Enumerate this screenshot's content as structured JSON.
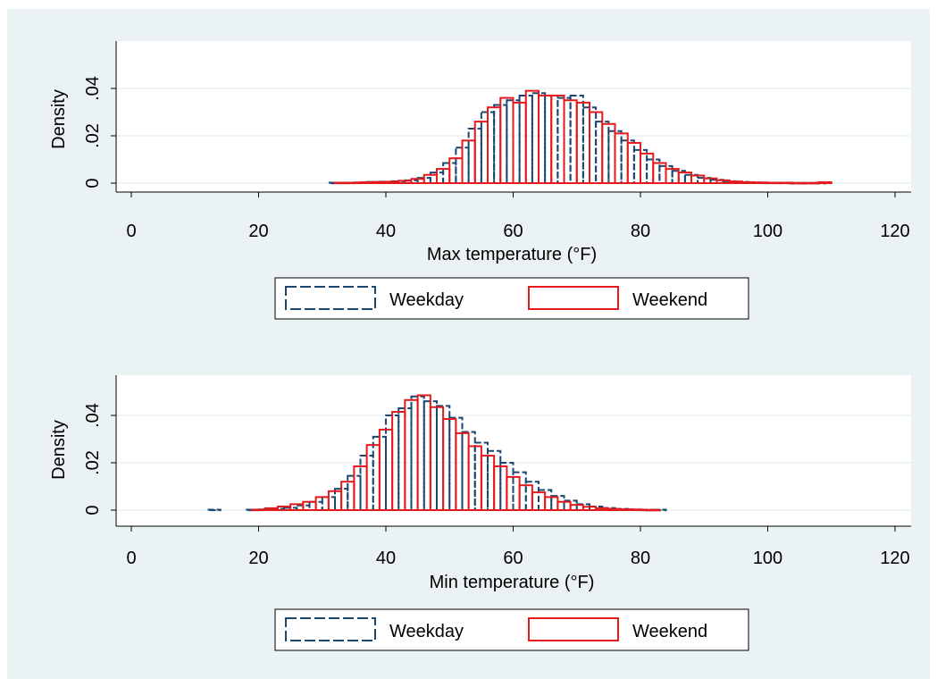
{
  "colors": {
    "outer_background": "#ffffff",
    "graph_region": "#eaf2f3",
    "plot_region": "#ffffff",
    "grid": "#eaf2f3",
    "weekday": "#1a476f",
    "weekend": "#e41a1c",
    "axis": "#000000"
  },
  "chart_data": [
    {
      "type": "bar",
      "subtype": "overlaid-histogram",
      "xlabel": "Max temperature (°F)",
      "ylabel": "Density",
      "xlim": [
        0,
        120
      ],
      "ylim": [
        0,
        0.05
      ],
      "xticks": [
        0,
        20,
        40,
        60,
        80,
        100,
        120
      ],
      "yticks": [
        0,
        0.02,
        0.04
      ],
      "ytick_labels": [
        "0",
        ".02",
        ".04"
      ],
      "grid": true,
      "legend_position": "bottom",
      "bin_width": 2,
      "series": [
        {
          "name": "Weekday",
          "style": "dashed",
          "bins": [
            32,
            34,
            36,
            38,
            40,
            42,
            44,
            46,
            48,
            50,
            52,
            54,
            56,
            58,
            60,
            62,
            64,
            66,
            68,
            70,
            72,
            74,
            76,
            78,
            80,
            82,
            84,
            86,
            88,
            90,
            92,
            94,
            96,
            98,
            100,
            102,
            104,
            106,
            108
          ],
          "values": [
            0.0002,
            0.0002,
            0.0003,
            0.0005,
            0.0006,
            0.0008,
            0.0012,
            0.0022,
            0.0045,
            0.0085,
            0.015,
            0.023,
            0.03,
            0.033,
            0.035,
            0.037,
            0.038,
            0.037,
            0.036,
            0.037,
            0.032,
            0.026,
            0.022,
            0.018,
            0.014,
            0.01,
            0.0072,
            0.0052,
            0.0035,
            0.0022,
            0.0014,
            0.0008,
            0.0005,
            0.0003,
            0.0002,
            0.0002,
            0.0001,
            0.0001,
            0.0001
          ]
        },
        {
          "name": "Weekend",
          "style": "solid",
          "bins": [
            33,
            35,
            37,
            39,
            41,
            43,
            45,
            47,
            49,
            51,
            53,
            55,
            57,
            59,
            61,
            63,
            65,
            67,
            69,
            71,
            73,
            75,
            77,
            79,
            81,
            83,
            85,
            87,
            89,
            91,
            93,
            95,
            97,
            99,
            101,
            103,
            105,
            107,
            109
          ],
          "values": [
            0.0002,
            0.0002,
            0.0004,
            0.0005,
            0.0006,
            0.001,
            0.0018,
            0.0035,
            0.006,
            0.0105,
            0.018,
            0.026,
            0.032,
            0.036,
            0.034,
            0.039,
            0.037,
            0.037,
            0.035,
            0.034,
            0.03,
            0.025,
            0.021,
            0.017,
            0.0125,
            0.0085,
            0.006,
            0.0045,
            0.0032,
            0.002,
            0.0012,
            0.0007,
            0.0004,
            0.0003,
            0.0002,
            0.0002,
            0.0001,
            0.0001,
            0.0004
          ]
        }
      ]
    },
    {
      "type": "bar",
      "subtype": "overlaid-histogram",
      "xlabel": "Min temperature (°F)",
      "ylabel": "Density",
      "xlim": [
        0,
        120
      ],
      "ylim": [
        0,
        0.05
      ],
      "xticks": [
        0,
        20,
        40,
        60,
        80,
        100,
        120
      ],
      "yticks": [
        0,
        0.02,
        0.04
      ],
      "ytick_labels": [
        "0",
        ".02",
        ".04"
      ],
      "grid": true,
      "legend_position": "bottom",
      "bin_width": 2,
      "series": [
        {
          "name": "Weekday",
          "style": "dashed",
          "bins": [
            13,
            19,
            21,
            23,
            25,
            27,
            29,
            31,
            33,
            35,
            37,
            39,
            41,
            43,
            45,
            47,
            49,
            51,
            53,
            55,
            57,
            59,
            61,
            63,
            65,
            67,
            69,
            71,
            73,
            75,
            77,
            79,
            81,
            83
          ],
          "values": [
            0.0002,
            0.0002,
            0.0003,
            0.0005,
            0.001,
            0.002,
            0.0035,
            0.0055,
            0.009,
            0.0145,
            0.023,
            0.031,
            0.04,
            0.043,
            0.048,
            0.046,
            0.044,
            0.039,
            0.033,
            0.0285,
            0.025,
            0.02,
            0.016,
            0.012,
            0.0085,
            0.006,
            0.004,
            0.0025,
            0.0015,
            0.0009,
            0.0005,
            0.0003,
            0.0002,
            0.0002
          ]
        },
        {
          "name": "Weekend",
          "style": "solid",
          "bins": [
            20,
            22,
            24,
            26,
            28,
            30,
            32,
            34,
            36,
            38,
            40,
            42,
            44,
            46,
            48,
            50,
            52,
            54,
            56,
            58,
            60,
            62,
            64,
            66,
            68,
            70,
            72,
            74,
            76,
            78,
            80,
            82
          ],
          "values": [
            0.0002,
            0.0008,
            0.0015,
            0.0025,
            0.0035,
            0.0055,
            0.008,
            0.012,
            0.0185,
            0.0275,
            0.034,
            0.0415,
            0.0465,
            0.0485,
            0.0435,
            0.0385,
            0.0325,
            0.027,
            0.023,
            0.0185,
            0.014,
            0.0105,
            0.0075,
            0.0055,
            0.0035,
            0.0022,
            0.0014,
            0.0008,
            0.0005,
            0.0003,
            0.0002,
            0.0001
          ]
        }
      ]
    }
  ]
}
